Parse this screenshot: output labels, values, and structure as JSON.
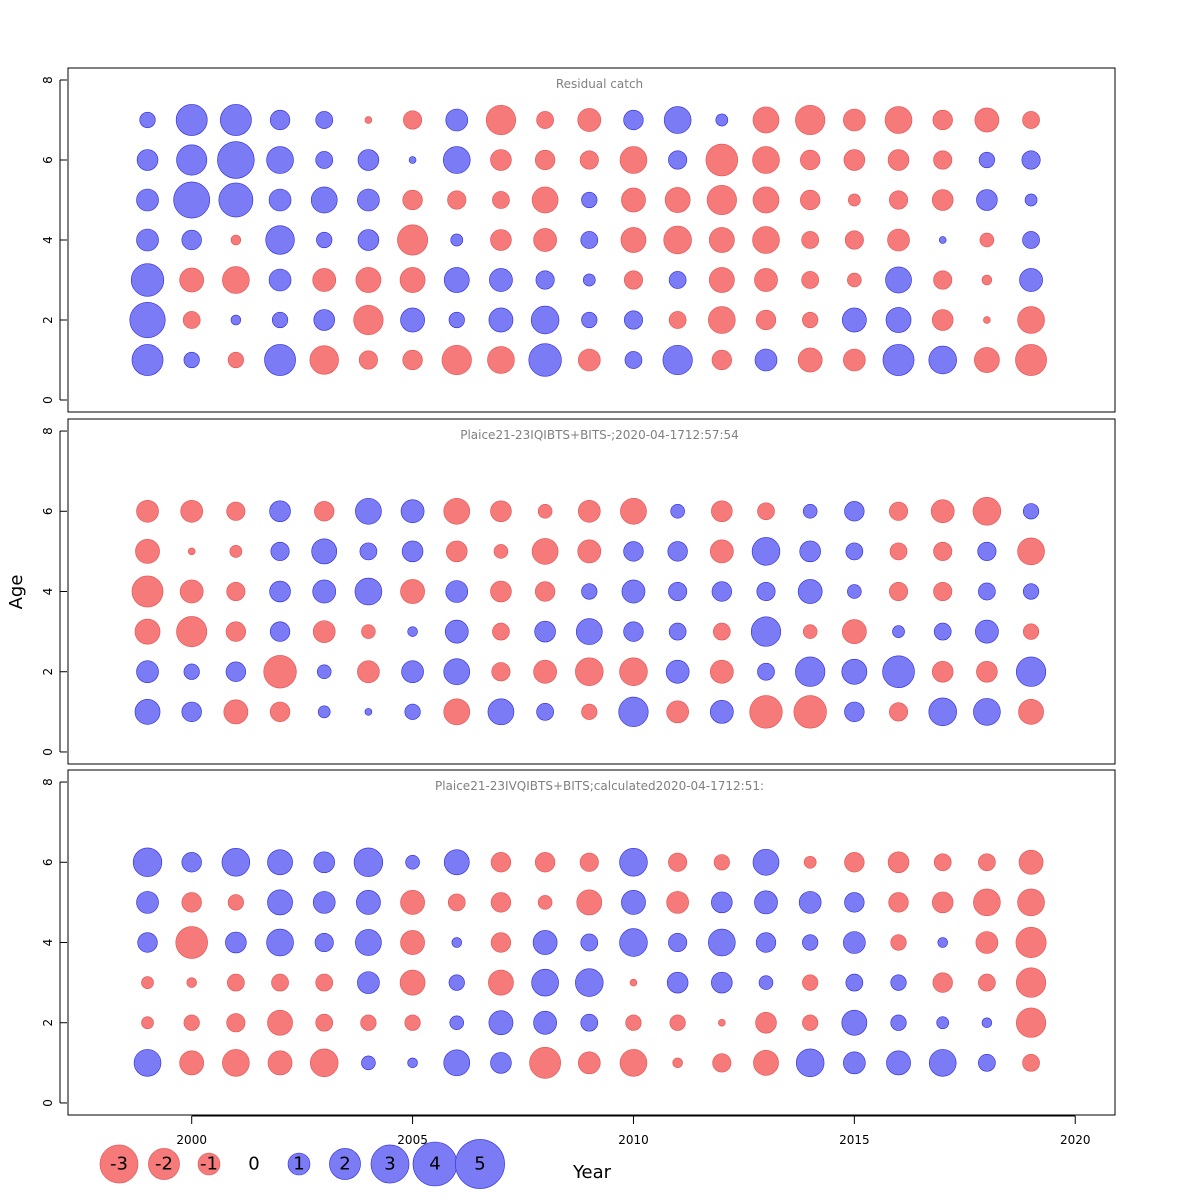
{
  "chart_data": {
    "type": "bubble",
    "xlabel": "Year",
    "ylabel": "Age",
    "xlim": [
      1997.2,
      2020.9
    ],
    "ylim": [
      -0.3,
      8.3
    ],
    "x_ticks": [
      2000,
      2005,
      2010,
      2015,
      2020
    ],
    "y_ticks": [
      0,
      2,
      4,
      6,
      8
    ],
    "years": [
      1999,
      2000,
      2001,
      2002,
      2003,
      2004,
      2005,
      2006,
      2007,
      2008,
      2009,
      2010,
      2011,
      2012,
      2013,
      2014,
      2015,
      2016,
      2017,
      2018,
      2019
    ],
    "colors": {
      "positive": "#7b7bf5",
      "negative": "#f77a7a",
      "positive_stroke": "#2a2ad8",
      "negative_stroke": "#e05050"
    },
    "legend": {
      "values": [
        -3,
        -2,
        -1,
        0,
        1,
        2,
        3,
        4,
        5
      ],
      "labels": [
        "-3",
        "-2",
        "-1",
        "0",
        "1",
        "2",
        "3",
        "4",
        "5"
      ]
    },
    "panels": [
      {
        "title": "Residual catch",
        "residuals": {
          "1": [
            2.0,
            0.5,
            -0.5,
            2.0,
            -1.7,
            -0.7,
            -0.8,
            -1.8,
            -1.5,
            2.2,
            -1.0,
            0.6,
            1.8,
            -0.8,
            1.0,
            -1.2,
            -1.0,
            2.0,
            1.6,
            -1.3,
            -2.0
          ],
          "2": [
            2.6,
            -0.6,
            0.2,
            0.5,
            0.9,
            -1.8,
            1.2,
            0.5,
            1.2,
            1.6,
            0.5,
            0.7,
            -0.6,
            -1.5,
            -0.8,
            -0.5,
            1.2,
            1.3,
            -0.9,
            -0.1,
            -1.5
          ],
          "3": [
            2.2,
            -1.2,
            -1.5,
            1.0,
            -1.1,
            -1.3,
            -1.3,
            1.3,
            1.1,
            0.7,
            0.3,
            -0.7,
            0.6,
            -1.3,
            -1.1,
            -0.6,
            -0.4,
            1.4,
            -0.7,
            -0.2,
            1.1
          ],
          "4": [
            1.0,
            0.8,
            -0.2,
            1.7,
            0.5,
            0.9,
            -1.9,
            0.3,
            -0.9,
            -1.1,
            0.6,
            -1.3,
            -1.6,
            -1.3,
            -1.5,
            -0.6,
            -0.7,
            -1.0,
            0.1,
            -0.4,
            0.6
          ],
          "5": [
            1.0,
            2.7,
            2.4,
            1.0,
            1.4,
            1.0,
            -0.8,
            -0.7,
            -0.6,
            -1.4,
            0.5,
            -1.2,
            -1.3,
            -1.8,
            -1.4,
            -0.8,
            -0.3,
            -0.7,
            -0.9,
            0.9,
            0.3
          ],
          "6": [
            0.9,
            1.9,
            2.8,
            1.5,
            0.6,
            0.9,
            0.1,
            1.5,
            -0.9,
            -0.8,
            -0.7,
            -1.5,
            0.7,
            -2.1,
            -1.5,
            -0.8,
            -0.9,
            -0.9,
            -0.7,
            0.5,
            0.7
          ],
          "7": [
            0.5,
            2.0,
            2.0,
            0.8,
            0.6,
            -0.1,
            -0.7,
            1.0,
            -1.8,
            -0.6,
            -1.1,
            0.8,
            1.5,
            0.3,
            -1.4,
            -1.8,
            -1.0,
            -1.5,
            -0.8,
            -1.2,
            -0.6
          ]
        }
      },
      {
        "title": "Plaice21-23IQIBTS+BITS-;2020-04-1712:57:54",
        "residuals": {
          "1": [
            1.3,
            0.8,
            -1.2,
            -0.8,
            0.3,
            0.1,
            0.5,
            -1.4,
            1.4,
            0.6,
            -0.5,
            1.8,
            -1.0,
            1.1,
            -2.2,
            -2.2,
            0.8,
            -0.7,
            1.6,
            1.5,
            -1.3
          ],
          "2": [
            1.0,
            0.5,
            0.8,
            -2.2,
            0.4,
            -1.0,
            1.0,
            1.4,
            -0.7,
            -1.1,
            -1.6,
            -1.6,
            1.1,
            -1.1,
            0.6,
            1.8,
            1.3,
            2.1,
            -0.9,
            -0.9,
            1.8
          ],
          "3": [
            -1.3,
            -1.9,
            -0.8,
            0.8,
            -1.0,
            -0.4,
            0.2,
            1.1,
            -0.6,
            0.9,
            1.4,
            0.8,
            0.6,
            -0.6,
            1.8,
            -0.4,
            -1.2,
            0.3,
            0.6,
            1.1,
            -0.5
          ],
          "4": [
            -2.0,
            -1.1,
            -0.7,
            0.9,
            1.1,
            1.5,
            -1.2,
            1.0,
            -0.9,
            -0.8,
            0.5,
            1.1,
            0.7,
            0.8,
            0.7,
            1.2,
            0.4,
            -0.7,
            -0.7,
            0.6,
            0.5
          ],
          "5": [
            -1.2,
            -0.1,
            -0.3,
            0.7,
            1.3,
            0.6,
            0.9,
            -0.9,
            -0.4,
            -1.4,
            -1.1,
            0.8,
            0.8,
            -1.1,
            1.6,
            0.9,
            0.6,
            -0.6,
            -0.7,
            0.7,
            -1.5
          ],
          "6": [
            -1.0,
            -1.0,
            -0.7,
            0.9,
            -0.8,
            1.4,
            1.1,
            -1.4,
            -0.9,
            -0.4,
            -1.0,
            -1.4,
            0.4,
            -0.9,
            -0.6,
            0.4,
            0.8,
            -0.7,
            -1.1,
            -1.6,
            0.5
          ]
        }
      },
      {
        "title": "Plaice21-23IVQIBTS+BITS;calculated2020-04-1712:51:",
        "residuals": {
          "1": [
            1.5,
            -1.2,
            -1.5,
            -1.2,
            -1.6,
            0.4,
            0.2,
            1.4,
            0.9,
            -2.0,
            -1.0,
            -1.5,
            -0.2,
            -0.7,
            -1.3,
            1.6,
            1.0,
            1.2,
            1.5,
            0.6,
            -0.6
          ],
          "2": [
            -0.3,
            -0.5,
            -0.7,
            -1.3,
            -0.6,
            -0.5,
            -0.5,
            0.4,
            1.2,
            1.1,
            0.6,
            -0.5,
            -0.5,
            -0.1,
            -0.9,
            -0.5,
            1.3,
            0.5,
            0.3,
            0.2,
            -1.8
          ],
          "3": [
            -0.3,
            -0.2,
            -0.6,
            -0.6,
            -0.6,
            1.0,
            -1.3,
            0.5,
            -1.3,
            1.5,
            1.6,
            -0.1,
            0.9,
            0.9,
            0.4,
            -0.5,
            0.6,
            0.5,
            -0.8,
            -0.6,
            -1.8
          ],
          "4": [
            0.8,
            -2.1,
            0.9,
            1.5,
            0.7,
            1.4,
            -1.2,
            0.2,
            -0.8,
            1.2,
            0.6,
            1.6,
            0.7,
            1.5,
            0.8,
            0.5,
            1.0,
            -0.5,
            0.2,
            -1.0,
            -1.9
          ],
          "5": [
            1.0,
            -0.8,
            -0.5,
            1.3,
            1.0,
            1.2,
            -1.2,
            -0.6,
            -0.8,
            -0.4,
            -1.3,
            1.2,
            -1.0,
            0.9,
            1.1,
            1.0,
            0.8,
            -0.8,
            -0.9,
            -1.5,
            -1.5
          ],
          "6": [
            1.7,
            0.8,
            1.6,
            1.3,
            0.9,
            1.7,
            0.4,
            1.3,
            -0.8,
            -0.8,
            -0.7,
            1.6,
            -0.7,
            -0.5,
            1.4,
            -0.3,
            -0.8,
            -0.9,
            -0.6,
            -0.6,
            -1.2
          ]
        }
      }
    ]
  }
}
